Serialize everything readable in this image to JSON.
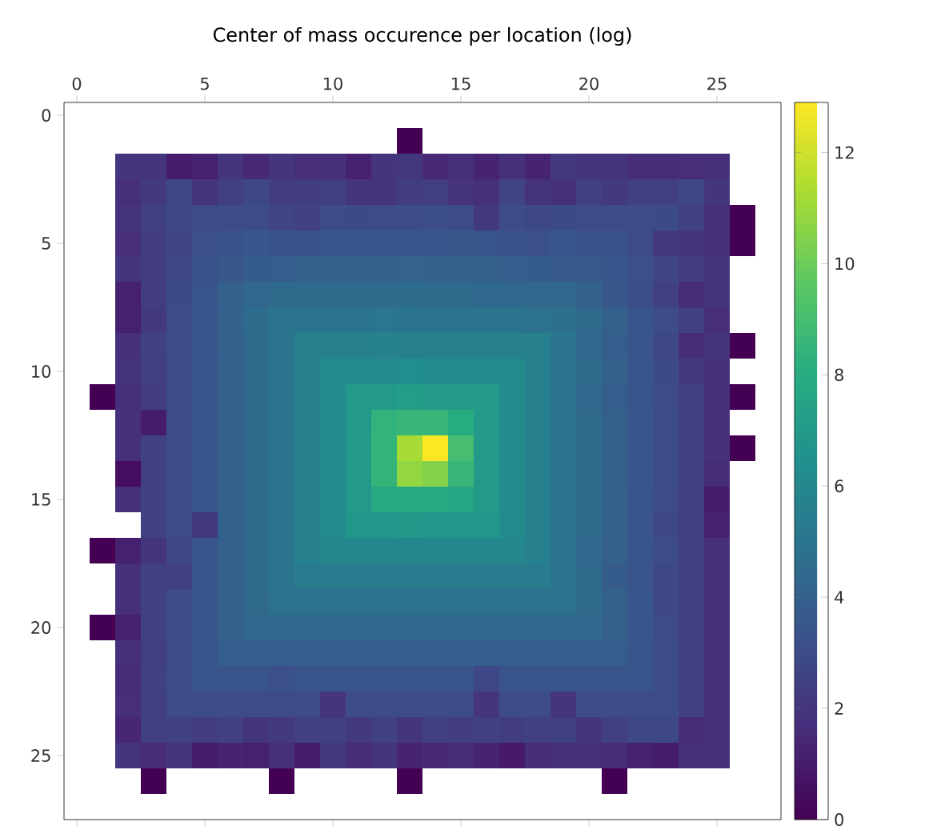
{
  "chart_data": {
    "type": "heatmap",
    "title": "Center of mass occurence per location (log)",
    "x": [
      1,
      2,
      3,
      4,
      5,
      6,
      7,
      8,
      9,
      10,
      11,
      12,
      13,
      14,
      15,
      16,
      17,
      18,
      19,
      20,
      21,
      22,
      23,
      24,
      25,
      26
    ],
    "y": [
      1,
      2,
      3,
      4,
      5,
      6,
      7,
      8,
      9,
      10,
      11,
      12,
      13,
      14,
      15,
      16,
      17,
      18,
      19,
      20,
      21,
      22,
      23,
      24,
      25,
      26
    ],
    "xlim": [
      -0.5,
      27.5
    ],
    "xticks": [
      0,
      5,
      10,
      15,
      20,
      25
    ],
    "ylim": [
      27.5,
      -0.5
    ],
    "yticks": [
      0,
      5,
      10,
      15,
      20,
      25
    ],
    "clim": [
      0,
      12.9
    ],
    "cticks": [
      0,
      2,
      4,
      6,
      8,
      10,
      12
    ],
    "cells": [
      [
        null,
        null,
        null,
        null,
        null,
        null,
        null,
        null,
        null,
        null,
        null,
        null,
        0,
        null,
        null,
        null,
        null,
        null,
        null,
        null,
        null,
        null,
        null,
        null,
        null,
        null
      ],
      [
        null,
        2.0,
        2.0,
        1.0,
        1.2,
        2.0,
        1.5,
        2.0,
        1.7,
        1.8,
        1.2,
        2.0,
        2.1,
        1.5,
        1.8,
        1.3,
        1.8,
        1.3,
        2.2,
        2.0,
        2.0,
        1.6,
        1.6,
        1.7,
        1.8,
        null
      ],
      [
        null,
        1.8,
        2.2,
        2.8,
        2.0,
        2.4,
        2.8,
        2.3,
        2.3,
        2.4,
        2.0,
        2.0,
        2.3,
        2.4,
        1.9,
        1.8,
        2.6,
        1.9,
        1.8,
        2.5,
        2.2,
        2.5,
        2.4,
        2.8,
        2.0,
        null
      ],
      [
        null,
        1.9,
        2.5,
        2.8,
        3.0,
        3.0,
        3.0,
        2.7,
        2.5,
        3.0,
        2.9,
        3.0,
        3.0,
        3.1,
        3.0,
        2.2,
        3.0,
        2.8,
        2.9,
        3.0,
        3.0,
        3.0,
        2.9,
        2.5,
        1.8,
        0
      ],
      [
        null,
        1.7,
        2.3,
        2.7,
        3.2,
        3.3,
        3.5,
        3.3,
        3.3,
        3.5,
        3.4,
        3.5,
        3.5,
        3.5,
        3.6,
        3.4,
        3.3,
        3.2,
        3.5,
        3.3,
        3.3,
        3.0,
        2.2,
        2.0,
        1.8,
        0
      ],
      [
        null,
        2.0,
        2.3,
        2.8,
        3.3,
        3.6,
        3.8,
        3.9,
        4.0,
        4.0,
        4.0,
        4.0,
        4.1,
        4.0,
        4.0,
        4.0,
        3.9,
        3.8,
        3.7,
        3.7,
        3.5,
        3.2,
        2.7,
        2.3,
        2.0,
        null
      ],
      [
        null,
        1.2,
        2.3,
        2.9,
        3.4,
        4.0,
        4.3,
        4.5,
        4.5,
        4.5,
        4.5,
        4.5,
        4.6,
        4.5,
        4.5,
        4.4,
        4.4,
        4.3,
        4.4,
        4.0,
        3.6,
        3.1,
        2.5,
        1.6,
        2.0,
        null
      ],
      [
        null,
        1.2,
        2.2,
        3.0,
        3.5,
        4.0,
        4.6,
        5.0,
        5.0,
        5.0,
        5.0,
        5.1,
        5.0,
        5.0,
        5.0,
        5.0,
        5.0,
        4.9,
        4.8,
        4.5,
        4.0,
        3.4,
        3.0,
        2.4,
        1.7,
        null
      ],
      [
        null,
        1.8,
        2.5,
        3.0,
        3.5,
        4.0,
        4.5,
        5.0,
        5.6,
        5.6,
        5.6,
        5.7,
        5.6,
        5.6,
        5.6,
        5.6,
        5.6,
        5.6,
        5.0,
        4.4,
        3.9,
        3.4,
        2.8,
        1.6,
        1.9,
        0
      ],
      [
        null,
        1.9,
        2.4,
        3.0,
        3.4,
        4.0,
        4.5,
        5.0,
        5.6,
        6.2,
        6.2,
        6.2,
        6.3,
        6.2,
        6.2,
        6.2,
        6.2,
        5.6,
        5.0,
        4.5,
        4.0,
        3.4,
        2.9,
        2.2,
        1.8,
        null
      ],
      [
        0,
        1.8,
        2.3,
        3.0,
        3.5,
        4.0,
        4.5,
        5.0,
        5.6,
        6.2,
        7.0,
        7.0,
        7.1,
        7.0,
        7.0,
        7.0,
        6.2,
        5.6,
        5.0,
        4.4,
        3.9,
        3.4,
        3.0,
        2.4,
        1.8,
        0
      ],
      [
        null,
        1.8,
        1.0,
        3.0,
        3.5,
        4.0,
        4.5,
        5.0,
        5.6,
        6.2,
        7.0,
        8.4,
        8.6,
        8.6,
        8.0,
        7.0,
        6.2,
        5.6,
        5.0,
        4.5,
        4.0,
        3.5,
        3.0,
        2.5,
        1.8,
        null
      ],
      [
        null,
        1.8,
        2.5,
        3.0,
        3.5,
        4.0,
        4.5,
        5.0,
        5.6,
        6.2,
        7.0,
        8.5,
        11.2,
        12.9,
        9.0,
        7.0,
        6.2,
        5.6,
        5.0,
        4.5,
        4.0,
        3.5,
        3.0,
        2.5,
        1.8,
        0
      ],
      [
        null,
        0.5,
        2.5,
        3.0,
        3.5,
        4.0,
        4.5,
        5.0,
        5.6,
        6.2,
        7.0,
        8.5,
        10.8,
        10.5,
        8.6,
        7.0,
        6.2,
        5.6,
        5.0,
        4.5,
        4.0,
        3.5,
        3.0,
        2.5,
        1.6,
        null
      ],
      [
        null,
        1.8,
        2.5,
        3.0,
        3.5,
        4.0,
        4.5,
        5.0,
        5.6,
        6.2,
        7.0,
        7.8,
        7.8,
        7.8,
        7.6,
        7.0,
        6.2,
        5.6,
        5.0,
        4.5,
        4.0,
        3.4,
        3.0,
        2.4,
        1.0,
        null
      ],
      [
        null,
        null,
        2.5,
        3.0,
        2.2,
        4.0,
        4.5,
        5.0,
        5.6,
        6.2,
        6.8,
        6.8,
        6.9,
        6.8,
        6.8,
        6.8,
        6.2,
        5.6,
        5.0,
        4.5,
        4.0,
        3.4,
        2.8,
        2.4,
        1.2,
        null
      ],
      [
        0,
        1.2,
        2.0,
        2.8,
        3.5,
        4.0,
        4.5,
        5.0,
        5.6,
        6.0,
        6.0,
        6.0,
        6.0,
        6.0,
        6.0,
        6.0,
        6.0,
        5.6,
        5.0,
        4.4,
        4.0,
        3.4,
        3.0,
        2.5,
        1.8,
        null
      ],
      [
        null,
        1.8,
        2.5,
        2.4,
        3.5,
        4.0,
        4.5,
        5.0,
        5.4,
        5.4,
        5.4,
        5.4,
        5.4,
        5.4,
        5.4,
        5.4,
        5.4,
        5.4,
        5.0,
        4.5,
        3.8,
        3.4,
        2.8,
        2.5,
        1.8,
        null
      ],
      [
        null,
        1.8,
        2.5,
        3.0,
        3.5,
        4.0,
        4.5,
        4.9,
        4.9,
        4.9,
        4.9,
        4.9,
        4.9,
        4.9,
        4.9,
        4.9,
        4.9,
        4.9,
        4.9,
        4.5,
        4.0,
        3.5,
        2.8,
        2.5,
        1.8,
        null
      ],
      [
        0,
        1.2,
        2.5,
        3.0,
        3.5,
        4.0,
        4.4,
        4.4,
        4.4,
        4.4,
        4.4,
        4.4,
        4.4,
        4.4,
        4.4,
        4.4,
        4.4,
        4.4,
        4.4,
        4.4,
        4.0,
        3.5,
        3.0,
        2.4,
        1.8,
        null
      ],
      [
        null,
        1.8,
        2.4,
        3.0,
        3.4,
        3.9,
        3.9,
        3.9,
        3.9,
        3.9,
        3.9,
        3.9,
        3.9,
        3.9,
        3.9,
        3.9,
        3.9,
        3.9,
        3.9,
        3.9,
        3.9,
        3.4,
        3.0,
        2.5,
        1.8,
        null
      ],
      [
        null,
        1.6,
        2.5,
        3.0,
        3.4,
        3.4,
        3.4,
        3.2,
        3.4,
        3.4,
        3.4,
        3.4,
        3.4,
        3.4,
        3.4,
        2.8,
        3.4,
        3.4,
        3.4,
        3.4,
        3.4,
        3.4,
        3.0,
        2.5,
        1.8,
        null
      ],
      [
        null,
        1.7,
        2.4,
        3.0,
        3.0,
        3.0,
        3.0,
        3.0,
        3.0,
        2.0,
        3.0,
        3.0,
        3.0,
        3.0,
        3.0,
        2.0,
        3.0,
        3.0,
        2.0,
        3.0,
        3.0,
        3.0,
        3.0,
        2.5,
        1.8,
        null
      ],
      [
        null,
        1.4,
        2.5,
        2.5,
        2.3,
        2.5,
        2.0,
        2.2,
        2.5,
        2.5,
        2.2,
        2.5,
        2.0,
        2.5,
        2.3,
        2.5,
        2.3,
        2.5,
        2.5,
        2.0,
        2.5,
        2.8,
        2.8,
        1.6,
        1.8,
        null
      ],
      [
        null,
        2.0,
        1.6,
        2.0,
        1.0,
        1.3,
        1.2,
        1.8,
        1.0,
        2.2,
        1.6,
        2.0,
        1.3,
        1.5,
        1.6,
        1.3,
        0.9,
        1.6,
        1.8,
        1.8,
        1.6,
        1.2,
        1.0,
        1.8,
        1.8,
        null
      ],
      [
        null,
        null,
        0,
        null,
        null,
        null,
        null,
        0,
        null,
        null,
        null,
        null,
        0,
        null,
        null,
        null,
        null,
        null,
        null,
        null,
        0,
        null,
        null,
        null,
        null,
        null
      ]
    ]
  }
}
